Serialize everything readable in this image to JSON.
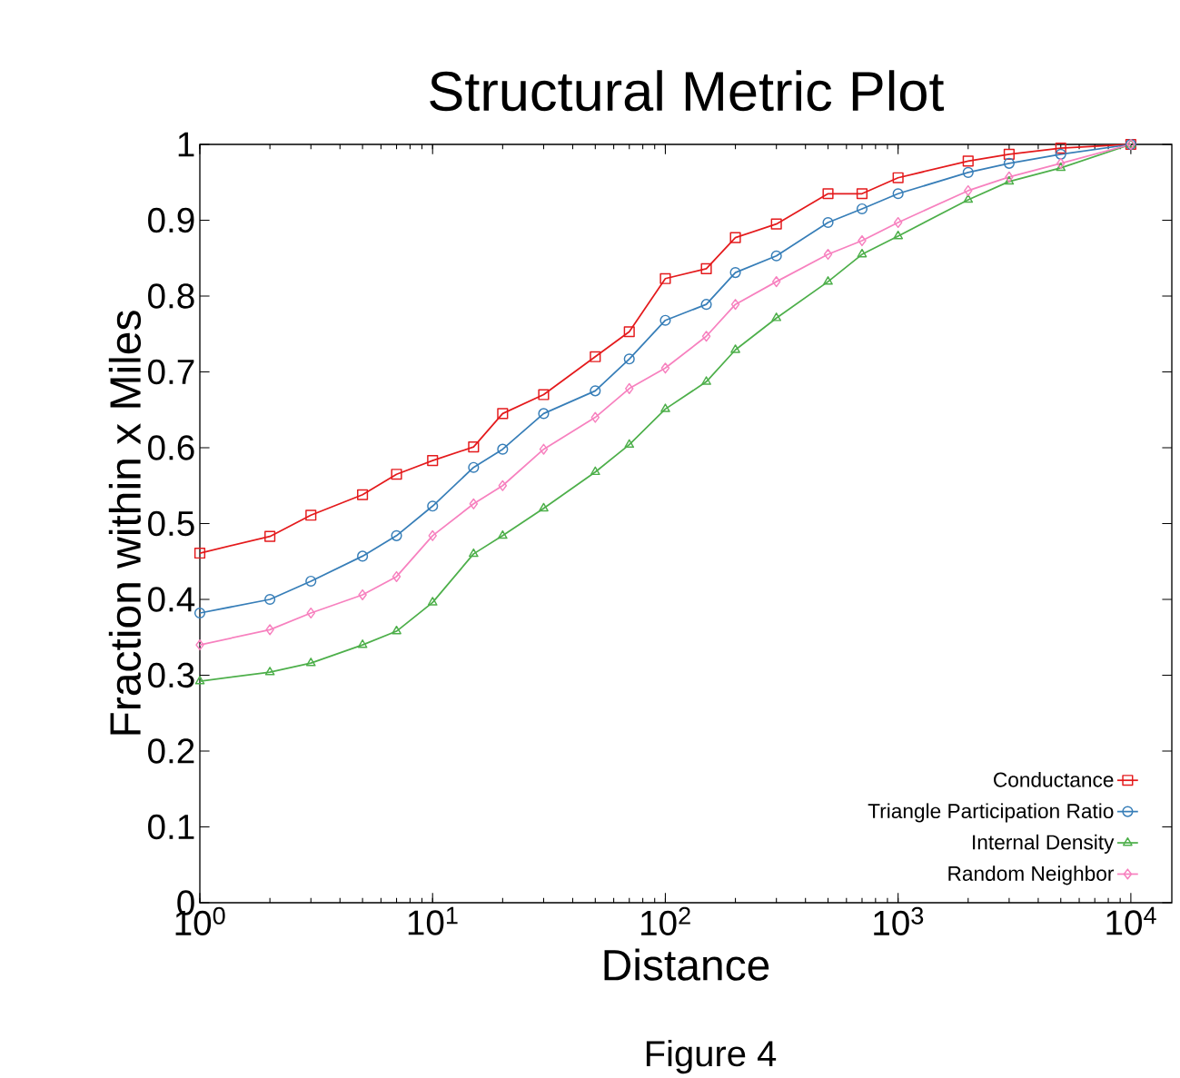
{
  "chart_data": {
    "type": "line",
    "title": "Structural Metric Plot",
    "xlabel": "Distance",
    "ylabel": "Fraction within x Miles",
    "annotations": [
      "Figure 4"
    ],
    "log": "x",
    "legend": "bottom right",
    "grid": false,
    "xlim": [
      1,
      15000
    ],
    "ylim": [
      0,
      1
    ],
    "xticks": [
      {
        "value": 1,
        "label": "10$^{0}$"
      },
      {
        "value": 10,
        "label": "10$^{1}$"
      },
      {
        "value": 100,
        "label": "10$^{2}$"
      },
      {
        "value": 1000,
        "label": "10$^{3}$"
      },
      {
        "value": 10000,
        "label": "10$^{4}$"
      }
    ],
    "yticks": [
      0,
      0.1,
      0.2,
      0.3,
      0.4,
      0.5,
      0.6,
      0.7,
      0.8,
      0.9,
      1
    ],
    "x": [
      1,
      2,
      3,
      5,
      7,
      10,
      15,
      20,
      30,
      50,
      70,
      100,
      150,
      200,
      300,
      500,
      700,
      1000,
      2000,
      3000,
      5000,
      10000
    ],
    "series": [
      {
        "name": "Conductance",
        "color": "#e41a1c",
        "marker": "square",
        "values": [
          0.461,
          0.483,
          0.511,
          0.538,
          0.565,
          0.583,
          0.601,
          0.645,
          0.67,
          0.72,
          0.753,
          0.823,
          0.836,
          0.877,
          0.895,
          0.935,
          0.935,
          0.956,
          0.978,
          0.987,
          0.995,
          1
        ]
      },
      {
        "name": "Triangle Participation Ratio",
        "color": "#377eb8",
        "marker": "circle",
        "values": [
          0.382,
          0.4,
          0.424,
          0.457,
          0.484,
          0.523,
          0.574,
          0.598,
          0.645,
          0.675,
          0.717,
          0.768,
          0.789,
          0.831,
          0.853,
          0.897,
          0.915,
          0.935,
          0.963,
          0.975,
          0.987,
          1
        ]
      },
      {
        "name": "Internal Density",
        "color": "#4daf4a",
        "marker": "triangle",
        "values": [
          0.292,
          0.304,
          0.316,
          0.34,
          0.358,
          0.396,
          0.46,
          0.484,
          0.52,
          0.568,
          0.604,
          0.651,
          0.687,
          0.729,
          0.771,
          0.819,
          0.855,
          0.879,
          0.927,
          0.951,
          0.969,
          1
        ]
      },
      {
        "name": "Random Neighbor",
        "color": "#f781bf",
        "marker": "diamond",
        "values": [
          0.34,
          0.36,
          0.382,
          0.406,
          0.43,
          0.484,
          0.526,
          0.55,
          0.598,
          0.64,
          0.678,
          0.705,
          0.747,
          0.789,
          0.819,
          0.855,
          0.873,
          0.897,
          0.939,
          0.957,
          0.975,
          1
        ]
      }
    ]
  }
}
